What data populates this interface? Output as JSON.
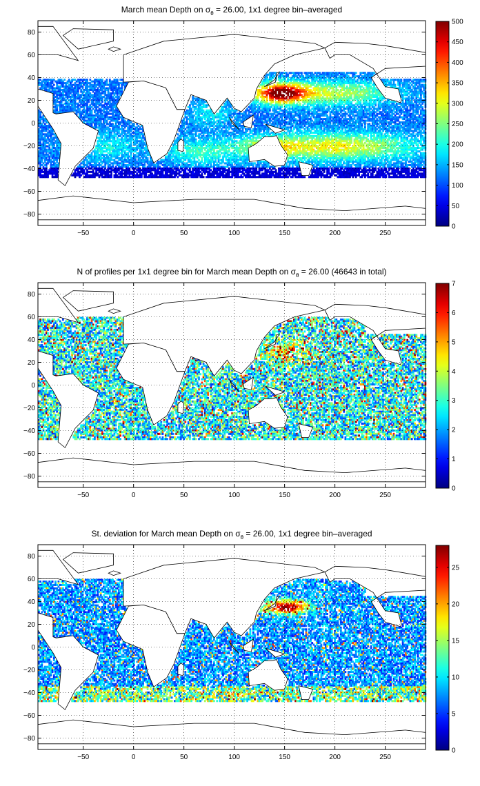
{
  "chart_data": [
    {
      "type": "heatmap",
      "title": "March mean Depth on σθ = 26.00, 1x1 degree bin–averaged",
      "title_parts": {
        "pre": "March mean Depth on σ",
        "sub": "θ",
        "post": " = 26.00, 1x1 degree bin–averaged"
      },
      "xlim": [
        -95,
        290
      ],
      "ylim": [
        -90,
        90
      ],
      "xticks": [
        -50,
        0,
        50,
        100,
        150,
        200,
        250
      ],
      "yticks": [
        80,
        60,
        40,
        20,
        0,
        -20,
        -40,
        -60,
        -80
      ],
      "grid": true,
      "colorbar": {
        "min": 0,
        "max": 500,
        "ticks": [
          0,
          50,
          100,
          150,
          200,
          250,
          300,
          350,
          400,
          450,
          500
        ],
        "colormap": "jet"
      },
      "description_values": {
        "subtropical_north_pacific": 450,
        "south_pacific_gyre": 300,
        "tropical_band": 150,
        "southern_edge": 50
      }
    },
    {
      "type": "heatmap",
      "title": "N of profiles per 1x1 degree bin for March mean Depth on σθ = 26.00 (46643 in total)",
      "title_parts": {
        "pre": "N of profiles per 1x1 degree bin for March mean Depth on σ",
        "sub": "θ",
        "post": " = 26.00 (46643 in total)"
      },
      "total_profiles": 46643,
      "xlim": [
        -95,
        290
      ],
      "ylim": [
        -90,
        90
      ],
      "xticks": [
        -50,
        0,
        50,
        100,
        150,
        200,
        250
      ],
      "yticks": [
        80,
        60,
        40,
        20,
        0,
        -20,
        -40,
        -60,
        -80
      ],
      "grid": true,
      "colorbar": {
        "min": 0,
        "max": 7,
        "ticks": [
          0,
          1,
          2,
          3,
          4,
          5,
          6,
          7
        ],
        "colormap": "jet"
      }
    },
    {
      "type": "heatmap",
      "title": "St. deviation for March mean Depth on σθ = 26.00, 1x1 degree bin–averaged",
      "title_parts": {
        "pre": "St. deviation for March mean Depth on σ",
        "sub": "θ",
        "post": " = 26.00, 1x1 degree bin–averaged"
      },
      "xlim": [
        -95,
        290
      ],
      "ylim": [
        -90,
        90
      ],
      "xticks": [
        -50,
        0,
        50,
        100,
        150,
        200,
        250
      ],
      "yticks": [
        80,
        60,
        40,
        20,
        0,
        -20,
        -40,
        -60,
        -80
      ],
      "grid": true,
      "colorbar": {
        "min": 0,
        "max": 28,
        "ticks": [
          0,
          5,
          10,
          15,
          20,
          25
        ],
        "colormap": "jet"
      }
    }
  ]
}
